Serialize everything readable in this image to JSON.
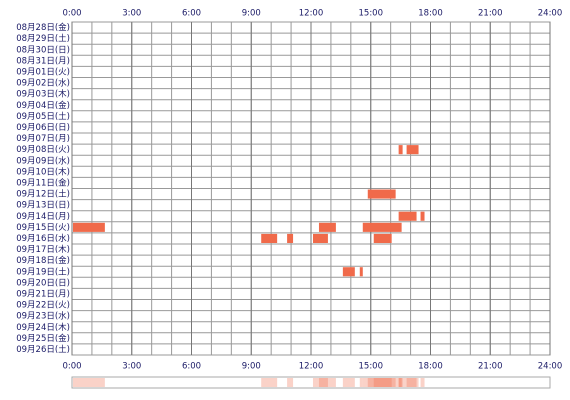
{
  "chart_data": {
    "type": "timeline",
    "categories": [
      "08月28日(金)",
      "08月29日(土)",
      "08月30日(日)",
      "08月31日(月)",
      "09月01日(火)",
      "09月02日(水)",
      "09月03日(木)",
      "09月04日(金)",
      "09月05日(土)",
      "09月06日(日)",
      "09月07日(月)",
      "09月08日(火)",
      "09月09日(水)",
      "09月10日(木)",
      "09月11日(金)",
      "09月12日(土)",
      "09月13日(日)",
      "09月14日(月)",
      "09月15日(火)",
      "09月16日(水)",
      "09月17日(木)",
      "09月18日(金)",
      "09月19日(土)",
      "09月20日(日)",
      "09月21日(月)",
      "09月22日(火)",
      "09月23日(水)",
      "09月24日(木)",
      "09月25日(金)",
      "09月26日(土)"
    ],
    "segments": [
      [],
      [],
      [],
      [],
      [],
      [],
      [],
      [],
      [],
      [],
      [],
      [
        [
          16.4,
          16.6
        ],
        [
          16.8,
          17.4
        ]
      ],
      [],
      [],
      [],
      [
        [
          14.85,
          16.25
        ]
      ],
      [],
      [
        [
          16.4,
          17.3
        ],
        [
          17.5,
          17.7
        ]
      ],
      [
        [
          0.05,
          1.65
        ],
        [
          12.4,
          13.25
        ],
        [
          14.6,
          16.55
        ]
      ],
      [
        [
          9.5,
          10.3
        ],
        [
          10.8,
          11.1
        ],
        [
          12.1,
          12.85
        ],
        [
          15.15,
          16.05
        ]
      ],
      [],
      [],
      [
        [
          13.6,
          14.2
        ],
        [
          14.45,
          14.6
        ]
      ],
      [],
      [],
      [],
      [],
      [],
      [],
      []
    ],
    "color": "#f06a4a",
    "xlim": [
      0,
      24
    ],
    "xticks": [
      {
        "value": 0,
        "label": "0:00"
      },
      {
        "value": 3,
        "label": "3:00"
      },
      {
        "value": 6,
        "label": "6:00"
      },
      {
        "value": 9,
        "label": "9:00"
      },
      {
        "value": 12,
        "label": "12:00"
      },
      {
        "value": 15,
        "label": "15:00"
      },
      {
        "value": 18,
        "label": "18:00"
      },
      {
        "value": 21,
        "label": "21:00"
      },
      {
        "value": 24,
        "label": "24:00"
      }
    ],
    "grid": true
  }
}
